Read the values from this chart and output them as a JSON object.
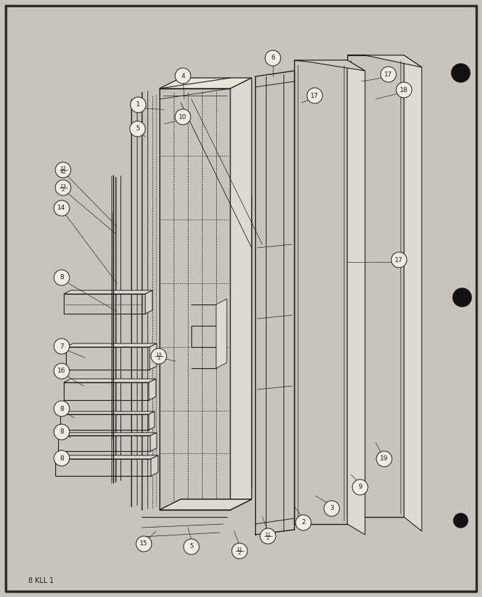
{
  "bg_color": "#c8c4bc",
  "paper_color": "#f0ece0",
  "line_color": "#1a1a1a",
  "footer_text": "8 KLL 1",
  "fig_width": 6.8,
  "fig_height": 8.43,
  "dpi": 100
}
